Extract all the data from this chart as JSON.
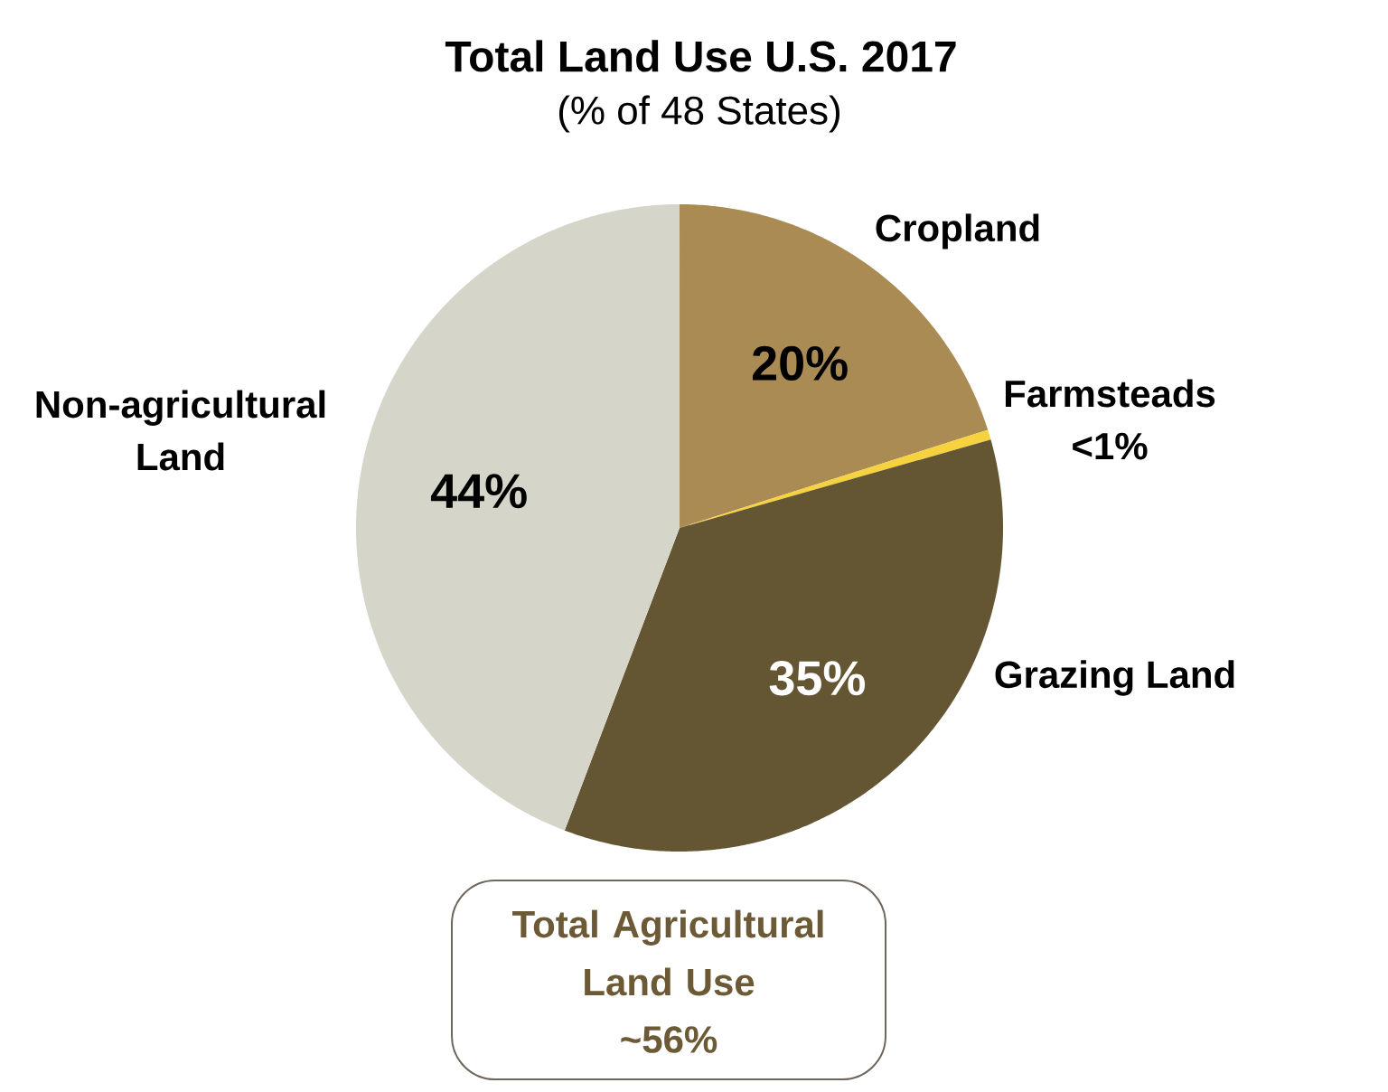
{
  "chart_data": {
    "type": "pie",
    "title": "Total Land Use U.S. 2017",
    "subtitle": "(% of 48 States)",
    "categories": [
      "Cropland",
      "Farmsteads",
      "Grazing Land",
      "Non-agricultural Land"
    ],
    "values": [
      20,
      0.5,
      35,
      44
    ],
    "value_labels": [
      "20%",
      "<1%",
      "35%",
      "44%"
    ],
    "colors": [
      "#aa8b53",
      "#f6d23e",
      "#655633",
      "#d6d5ca"
    ],
    "annotations": [
      "Total Agricultural Land Use",
      "~56%"
    ]
  }
}
